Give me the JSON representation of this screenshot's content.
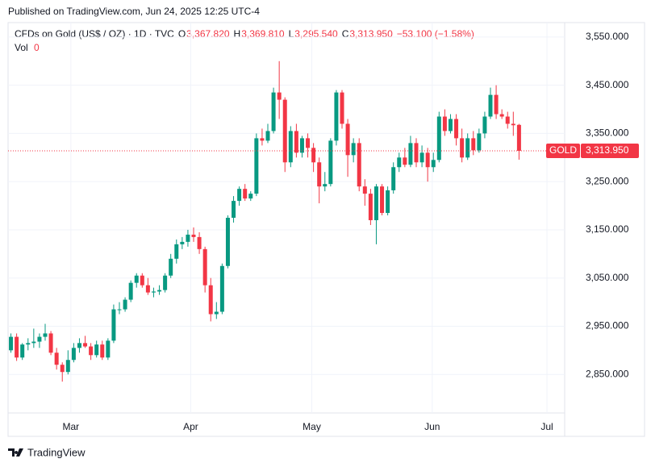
{
  "chart_data": {
    "type": "candlestick",
    "published": "Published on TradingView.com, Jun 24, 2025 12:25 UTC-4",
    "symbol": "CFDs on Gold (US$ / OZ) · 1D · TVC",
    "legend": {
      "o_label": "O",
      "o": "3,367.820",
      "h_label": "H",
      "h": "3,369.810",
      "l_label": "L",
      "l": "3,295.540",
      "c_label": "C",
      "c": "3,313.950",
      "change": "−53.100 (−1.58%)",
      "vol_label": "Vol",
      "vol": "0"
    },
    "price_tag": {
      "name": "GOLD",
      "value": 3313.95,
      "label": "3,313.950"
    },
    "brand": "TradingView",
    "up_color": "#089981",
    "down_color": "#f23645",
    "grid": true,
    "x": [
      0,
      1,
      2,
      3,
      4,
      5,
      6,
      7,
      8,
      9,
      10,
      11,
      12,
      13,
      14,
      15,
      16,
      17,
      18,
      19,
      20,
      21,
      22,
      23,
      24,
      25,
      26,
      27,
      28,
      29,
      30,
      31,
      32,
      33,
      34,
      35,
      36,
      37,
      38,
      39,
      40,
      41,
      42,
      43,
      44,
      45,
      46,
      47,
      48,
      49,
      50,
      51,
      52,
      53,
      54,
      55,
      56,
      57,
      58,
      59,
      60,
      61,
      62,
      63,
      64,
      65,
      66,
      67,
      68,
      69,
      70,
      71,
      72,
      73,
      74,
      75,
      76,
      77,
      78,
      79,
      80,
      81,
      82,
      83,
      84,
      85,
      86,
      87,
      88,
      89
    ],
    "open": [
      2900,
      2928,
      2885,
      2912,
      2915,
      2918,
      2928,
      2935,
      2895,
      2870,
      2855,
      2880,
      2905,
      2915,
      2908,
      2890,
      2912,
      2885,
      2920,
      2985,
      2985,
      3005,
      3040,
      3055,
      3035,
      3020,
      3022,
      3025,
      3055,
      3090,
      3120,
      3125,
      3140,
      3135,
      3110,
      3035,
      2975,
      2980,
      3075,
      3175,
      3210,
      3235,
      3215,
      3225,
      3340,
      3335,
      3355,
      3435,
      3420,
      3290,
      3355,
      3310,
      3340,
      3320,
      3290,
      3240,
      3245,
      3335,
      3435,
      3370,
      3305,
      3330,
      3240,
      3225,
      3170,
      3240,
      3185,
      3232,
      3280,
      3300,
      3285,
      3330,
      3290,
      3310,
      3280,
      3295,
      3385,
      3355,
      3380,
      3340,
      3300,
      3340,
      3315,
      3350,
      3385,
      3430,
      3390,
      3385,
      3370,
      3367.82
    ],
    "high": [
      2935,
      2935,
      2915,
      2925,
      2945,
      2935,
      2955,
      2940,
      2905,
      2875,
      2900,
      2915,
      2925,
      2930,
      2915,
      2920,
      2920,
      2925,
      2995,
      3000,
      3010,
      3045,
      3060,
      3060,
      3050,
      3030,
      3035,
      3060,
      3100,
      3130,
      3135,
      3150,
      3155,
      3145,
      3115,
      3050,
      3000,
      3080,
      3180,
      3220,
      3240,
      3245,
      3230,
      3350,
      3360,
      3370,
      3445,
      3500,
      3425,
      3365,
      3370,
      3345,
      3350,
      3330,
      3300,
      3270,
      3340,
      3440,
      3440,
      3380,
      3340,
      3340,
      3255,
      3235,
      3245,
      3245,
      3240,
      3290,
      3310,
      3320,
      3345,
      3340,
      3325,
      3320,
      3310,
      3395,
      3400,
      3390,
      3390,
      3360,
      3350,
      3355,
      3360,
      3395,
      3445,
      3450,
      3400,
      3395,
      3395,
      3369.81
    ],
    "low": [
      2895,
      2878,
      2880,
      2900,
      2905,
      2905,
      2920,
      2890,
      2860,
      2835,
      2850,
      2875,
      2895,
      2905,
      2880,
      2885,
      2880,
      2880,
      2915,
      2975,
      2980,
      3000,
      3030,
      3030,
      3015,
      3010,
      3015,
      3020,
      3050,
      3080,
      3110,
      3115,
      3125,
      3100,
      3020,
      2960,
      2965,
      2975,
      3070,
      3165,
      3200,
      3210,
      3210,
      3220,
      3325,
      3330,
      3350,
      3380,
      3270,
      3280,
      3300,
      3300,
      3300,
      3270,
      3205,
      3230,
      3240,
      3325,
      3360,
      3260,
      3290,
      3230,
      3200,
      3160,
      3120,
      3180,
      3180,
      3225,
      3270,
      3280,
      3280,
      3280,
      3280,
      3250,
      3270,
      3290,
      3345,
      3350,
      3325,
      3290,
      3295,
      3305,
      3310,
      3340,
      3380,
      3380,
      3380,
      3360,
      3345,
      3295.54
    ],
    "close": [
      2928,
      2885,
      2912,
      2915,
      2918,
      2928,
      2935,
      2895,
      2870,
      2855,
      2880,
      2905,
      2915,
      2908,
      2890,
      2912,
      2885,
      2920,
      2985,
      2985,
      3005,
      3040,
      3055,
      3035,
      3020,
      3022,
      3025,
      3055,
      3090,
      3120,
      3125,
      3140,
      3135,
      3110,
      3035,
      2975,
      2980,
      3075,
      3175,
      3210,
      3235,
      3215,
      3225,
      3340,
      3335,
      3355,
      3435,
      3420,
      3290,
      3355,
      3310,
      3340,
      3320,
      3290,
      3240,
      3245,
      3335,
      3435,
      3370,
      3305,
      3330,
      3240,
      3225,
      3170,
      3240,
      3185,
      3232,
      3280,
      3300,
      3285,
      3330,
      3290,
      3310,
      3280,
      3295,
      3385,
      3355,
      3380,
      3340,
      3300,
      3340,
      3315,
      3350,
      3385,
      3430,
      3390,
      3385,
      3370,
      3367,
      3313.95
    ],
    "xlim": [
      -0.5,
      97
    ],
    "xticks": [
      {
        "value": 10.5,
        "label": "Mar"
      },
      {
        "value": 31.5,
        "label": "Apr"
      },
      {
        "value": 52.7,
        "label": "May"
      },
      {
        "value": 73.8,
        "label": "Jun"
      },
      {
        "value": 93.9,
        "label": "Jul"
      }
    ],
    "ylim": [
      2770,
      3580
    ],
    "yticks": [
      {
        "value": 2850,
        "label": "2,850.000"
      },
      {
        "value": 2950,
        "label": "2,950.000"
      },
      {
        "value": 3050,
        "label": "3,050.000"
      },
      {
        "value": 3150,
        "label": "3,150.000"
      },
      {
        "value": 3250,
        "label": "3,250.000"
      },
      {
        "value": 3350,
        "label": "3,350.000"
      },
      {
        "value": 3450,
        "label": "3,450.000"
      },
      {
        "value": 3550,
        "label": "3,550.000"
      }
    ]
  }
}
